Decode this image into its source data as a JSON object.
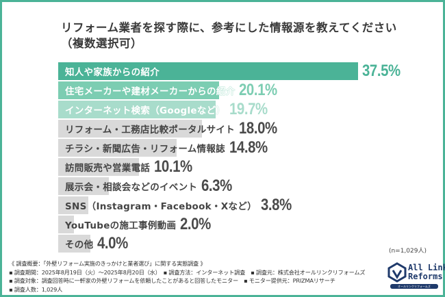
{
  "chart_data": {
    "type": "bar",
    "orientation": "horizontal",
    "title": "リフォーム業者を探す際に、参考にした情報源を教えてください",
    "subtitle": "（複数選択可）",
    "categories": [
      "知人や家族からの紹介",
      "住宅メーカーや建材メーカーからの紹介",
      "インターネット検索（Googleなど）",
      "リフォーム・工務店比較ポータルサイト",
      "チラシ・新聞広告・リフォーム情報誌",
      "訪問販売や営業電話",
      "展示会・相談会などのイベント",
      "SNS（Instagram・Facebook・Xなど）",
      "YouTubeの施工事例動画",
      "その他"
    ],
    "values": [
      37.5,
      20.1,
      19.7,
      18.0,
      14.8,
      10.1,
      6.3,
      3.8,
      2.0,
      4.0
    ],
    "value_labels": [
      "37.5%",
      "20.1%",
      "19.7%",
      "18.0%",
      "14.8%",
      "10.1%",
      "6.3%",
      "3.8%",
      "2.0%",
      "4.0%"
    ],
    "bar_colors": [
      "#4bb397",
      "#7ccdb2",
      "#a8dccb",
      "#d9d9d9",
      "#d9d9d9",
      "#d9d9d9",
      "#d9d9d9",
      "#d9d9d9",
      "#d9d9d9",
      "#d9d9d9"
    ],
    "value_colors": [
      "#4bb397",
      "#7ccdb2",
      "#a8dccb",
      "#4a4a4a",
      "#4a4a4a",
      "#4a4a4a",
      "#4a4a4a",
      "#4a4a4a",
      "#4a4a4a",
      "#4a4a4a"
    ],
    "xlim": [
      0,
      40
    ],
    "grid": false,
    "sample_note": "(n=1,029人)"
  },
  "notes": [
    "《 調査概要：「外壁リフォーム実施のきっかけと業者選び」に関する実態調査 》",
    "▪ 調査期間：2025年8月19日（火）〜2025年8月20日（水）　▪ 調査方法：インターネット調査　▪ 調査元：株式会社オールリンクリフォームズ",
    "▪ 調査対象：調査回答時に一軒家の外壁リフォームを依頼したことがあると回答したモニター　▪ モニター提供元：PRIZMAリサーチ",
    "▪ 調査人数：1,029人"
  ],
  "logo": {
    "line1": "All Link",
    "line2": "Reforms",
    "sub": "オールリンクリフォームズ",
    "color": "#1f3a6b"
  },
  "frame_color": "#4bb397"
}
